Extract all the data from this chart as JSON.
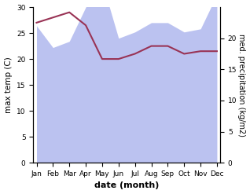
{
  "months": [
    "Jan",
    "Feb",
    "Mar",
    "Apr",
    "May",
    "Jun",
    "Jul",
    "Aug",
    "Sep",
    "Oct",
    "Nov",
    "Dec"
  ],
  "month_indices": [
    0,
    1,
    2,
    3,
    4,
    5,
    6,
    7,
    8,
    9,
    10,
    11
  ],
  "max_temp": [
    27.0,
    28.0,
    29.0,
    26.5,
    20.0,
    20.0,
    21.0,
    22.5,
    22.5,
    21.0,
    21.5,
    21.5
  ],
  "precipitation": [
    22.0,
    18.5,
    19.5,
    25.0,
    29.0,
    20.0,
    21.0,
    22.5,
    22.5,
    21.0,
    21.5,
    27.0
  ],
  "left_ylabel": "max temp (C)",
  "right_ylabel": "med. precipitation (kg/m2)",
  "xlabel": "date (month)",
  "left_ylim": [
    0,
    30
  ],
  "right_ylim": [
    0,
    25
  ],
  "right_yticks": [
    0,
    5,
    10,
    15,
    20
  ],
  "left_yticks": [
    0,
    5,
    10,
    15,
    20,
    25,
    30
  ],
  "fill_color": "#b0b8ee",
  "fill_alpha": 0.85,
  "line_color": "#993355",
  "line_width": 1.5,
  "bg_color": "#ffffff"
}
